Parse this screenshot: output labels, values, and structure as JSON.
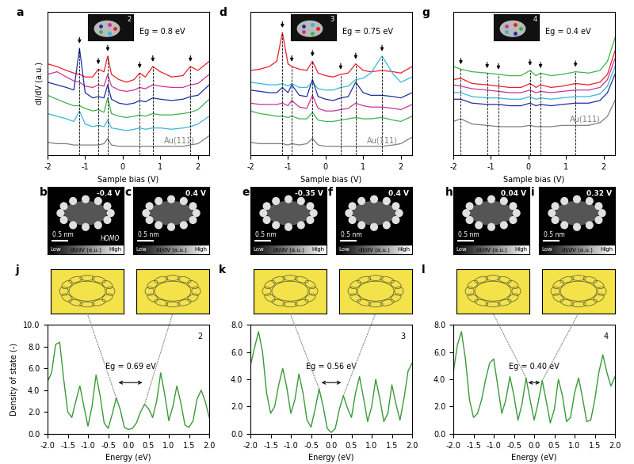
{
  "chart_data": [
    {
      "type": "line",
      "panel": "a",
      "molecule": "2",
      "gap_label": "Eg = 0.8 eV",
      "x_label": "Sample bias (V)",
      "y_label": "dI/dV (a.u.)",
      "xlim": [
        -2,
        2.3
      ],
      "ylim": [
        0,
        11
      ],
      "xticks": [
        -2,
        -1,
        0,
        1,
        2
      ],
      "tick_labels": "x",
      "peaks": [
        -1.15,
        -0.65,
        -0.4,
        0.45,
        0.8,
        1.8
      ],
      "x": [
        -2,
        -1.75,
        -1.5,
        -1.3,
        -1.15,
        -1.0,
        -0.8,
        -0.65,
        -0.5,
        -0.4,
        -0.3,
        -0.1,
        0.1,
        0.3,
        0.45,
        0.6,
        0.8,
        1.0,
        1.3,
        1.6,
        1.8,
        2.0,
        2.3
      ],
      "series": [
        {
          "color": "#e8202a",
          "values": [
            7.0,
            6.8,
            6.5,
            6.3,
            6.2,
            6.0,
            6.0,
            6.6,
            6.4,
            7.6,
            6.2,
            5.8,
            5.6,
            5.8,
            6.3,
            6.0,
            6.8,
            6.4,
            6.0,
            6.1,
            6.8,
            6.5,
            7.2
          ]
        },
        {
          "color": "#cc3399",
          "values": [
            6.2,
            6.4,
            6.0,
            5.7,
            5.6,
            5.3,
            5.2,
            5.4,
            5.3,
            6.2,
            5.3,
            5.0,
            4.9,
            5.0,
            5.2,
            5.1,
            5.4,
            5.3,
            5.2,
            5.2,
            5.4,
            5.5,
            6.2
          ]
        },
        {
          "color": "#1f2fa0",
          "values": [
            5.6,
            5.4,
            5.2,
            5.0,
            8.2,
            4.8,
            4.4,
            4.5,
            4.4,
            5.4,
            4.3,
            4.0,
            3.9,
            4.0,
            4.2,
            4.1,
            4.4,
            4.3,
            4.2,
            4.3,
            4.5,
            4.6,
            5.4
          ]
        },
        {
          "color": "#3cb44b",
          "values": [
            4.6,
            4.3,
            4.0,
            3.8,
            3.8,
            3.6,
            3.4,
            3.5,
            3.3,
            4.4,
            3.2,
            3.0,
            2.9,
            3.0,
            3.1,
            3.0,
            3.2,
            3.1,
            3.1,
            3.2,
            3.3,
            3.5,
            4.3
          ]
        },
        {
          "color": "#35b8d6",
          "values": [
            3.2,
            3.0,
            2.8,
            2.6,
            3.4,
            2.4,
            2.2,
            2.3,
            2.2,
            2.7,
            2.1,
            2.0,
            1.9,
            2.0,
            2.1,
            2.0,
            2.1,
            2.1,
            2.0,
            2.1,
            2.2,
            2.4,
            3.0
          ]
        },
        {
          "name": "Au(111)",
          "color": "#808080",
          "values": [
            1.0,
            0.9,
            0.9,
            0.8,
            0.8,
            0.8,
            0.8,
            0.8,
            0.9,
            1.3,
            0.8,
            0.7,
            0.7,
            0.7,
            0.7,
            0.7,
            0.7,
            0.7,
            0.7,
            0.7,
            0.8,
            0.9,
            1.5
          ]
        }
      ]
    },
    {
      "type": "line",
      "panel": "d",
      "molecule": "3",
      "gap_label": "Eg = 0.75 eV",
      "x_label": "Sample bias (V)",
      "xlim": [
        -2,
        2.3
      ],
      "ylim": [
        0,
        11
      ],
      "xticks": [
        -2,
        -1,
        0,
        1,
        2
      ],
      "tick_labels": "x",
      "peaks": [
        -1.15,
        -0.9,
        -0.35,
        0.4,
        0.8,
        1.5
      ],
      "x": [
        -2,
        -1.75,
        -1.5,
        -1.3,
        -1.15,
        -1.0,
        -0.9,
        -0.7,
        -0.5,
        -0.35,
        -0.2,
        0,
        0.2,
        0.4,
        0.6,
        0.8,
        1.0,
        1.2,
        1.5,
        1.8,
        2.0,
        2.3
      ],
      "series": [
        {
          "color": "#e8202a",
          "values": [
            6.5,
            6.6,
            6.8,
            7.2,
            9.4,
            7.0,
            6.8,
            6.6,
            6.5,
            7.2,
            6.3,
            6.1,
            6.0,
            6.2,
            6.3,
            7.0,
            6.5,
            6.4,
            6.5,
            6.4,
            6.3,
            6.8
          ]
        },
        {
          "color": "#35b8d6",
          "values": [
            5.6,
            5.5,
            5.4,
            5.4,
            5.5,
            5.3,
            5.5,
            5.2,
            5.2,
            5.6,
            5.1,
            5.0,
            5.0,
            5.2,
            5.3,
            5.8,
            5.9,
            6.3,
            7.6,
            6.2,
            5.6,
            6.0
          ]
        },
        {
          "color": "#1f2fa0",
          "values": [
            5.0,
            4.9,
            4.8,
            4.8,
            5.2,
            4.8,
            5.4,
            4.6,
            4.5,
            5.8,
            4.5,
            4.3,
            4.2,
            4.4,
            4.5,
            5.6,
            4.8,
            4.6,
            4.6,
            4.5,
            4.4,
            4.8
          ]
        },
        {
          "color": "#cc3399",
          "values": [
            4.0,
            3.9,
            3.9,
            3.9,
            4.0,
            3.8,
            4.2,
            3.7,
            3.6,
            4.6,
            3.6,
            3.4,
            3.4,
            3.5,
            3.6,
            4.0,
            3.8,
            3.7,
            3.7,
            3.6,
            3.5,
            3.9
          ]
        },
        {
          "color": "#3cb44b",
          "values": [
            3.4,
            3.2,
            3.1,
            3.0,
            3.0,
            2.9,
            3.0,
            2.8,
            2.8,
            3.3,
            2.7,
            2.6,
            2.6,
            2.7,
            2.8,
            2.9,
            2.8,
            2.8,
            2.9,
            2.7,
            2.6,
            3.0
          ]
        },
        {
          "name": "Au(111)",
          "color": "#808080",
          "values": [
            1.0,
            0.9,
            0.9,
            0.9,
            0.9,
            0.8,
            0.9,
            0.8,
            0.9,
            1.3,
            0.8,
            0.7,
            0.7,
            0.7,
            0.7,
            0.7,
            0.7,
            0.7,
            0.7,
            0.8,
            0.9,
            1.4
          ]
        }
      ]
    },
    {
      "type": "line",
      "panel": "g",
      "molecule": "4",
      "gap_label": "Eg = 0.4 eV",
      "x_label": "Sample bias (V)",
      "xlim": [
        -2,
        2.3
      ],
      "ylim": [
        0,
        11
      ],
      "xticks": [
        -2,
        -1,
        0,
        1,
        2
      ],
      "tick_labels": "x",
      "peaks": [
        -1.8,
        -1.1,
        -0.8,
        0.04,
        0.32,
        1.25
      ],
      "x": [
        -2,
        -1.8,
        -1.5,
        -1.1,
        -0.8,
        -0.5,
        -0.2,
        0.04,
        0.2,
        0.32,
        0.6,
        0.9,
        1.25,
        1.6,
        1.9,
        2.1,
        2.3
      ],
      "series": [
        {
          "color": "#3cb44b",
          "values": [
            6.8,
            6.6,
            6.4,
            6.3,
            6.2,
            6.1,
            6.1,
            6.5,
            6.1,
            6.3,
            6.1,
            6.2,
            6.4,
            6.3,
            6.5,
            7.2,
            9.0
          ]
        },
        {
          "color": "#e8202a",
          "values": [
            5.8,
            5.9,
            5.5,
            5.4,
            5.3,
            5.2,
            5.2,
            5.5,
            5.2,
            5.4,
            5.2,
            5.3,
            5.5,
            5.4,
            5.6,
            6.2,
            8.0
          ]
        },
        {
          "color": "#cc3399",
          "values": [
            5.4,
            5.3,
            5.1,
            5.0,
            4.9,
            4.8,
            4.8,
            5.0,
            4.8,
            4.9,
            4.8,
            4.9,
            5.0,
            5.0,
            5.2,
            5.8,
            7.4
          ]
        },
        {
          "color": "#35b8d6",
          "values": [
            4.8,
            4.8,
            4.5,
            4.4,
            4.4,
            4.3,
            4.3,
            4.5,
            4.3,
            4.4,
            4.3,
            4.4,
            4.5,
            4.5,
            4.7,
            5.3,
            6.8
          ]
        },
        {
          "color": "#1f2fa0",
          "values": [
            4.3,
            4.3,
            4.0,
            3.9,
            3.9,
            3.8,
            3.8,
            4.0,
            3.8,
            3.9,
            3.8,
            3.9,
            4.0,
            4.0,
            4.2,
            4.8,
            6.2
          ]
        },
        {
          "name": "Au(111)",
          "color": "#808080",
          "values": [
            2.6,
            2.8,
            2.4,
            2.3,
            2.2,
            2.2,
            2.2,
            2.3,
            2.2,
            2.2,
            2.2,
            2.3,
            2.3,
            2.3,
            2.5,
            3.0,
            4.2
          ]
        }
      ]
    },
    {
      "type": "line",
      "panel": "j",
      "molecule": "2",
      "gap_label": "Eg = 0.69 eV",
      "x_label": "Energy (eV)",
      "y_label": "Density of state (-)",
      "xlim": [
        -2.0,
        2.0
      ],
      "ylim": [
        0,
        10
      ],
      "xticks": [
        {
          "value": -2.0,
          "label": "-2.0"
        },
        {
          "value": -1.5,
          "label": "-1.5"
        },
        {
          "value": -1.0,
          "label": "-1.0"
        },
        {
          "value": -0.5,
          "label": "-0.5"
        },
        {
          "value": 0,
          "label": "0.0"
        },
        {
          "value": 0.5,
          "label": "0.5"
        },
        {
          "value": 1.0,
          "label": "1.0"
        },
        {
          "value": 1.5,
          "label": "1.5"
        },
        {
          "value": 2.0,
          "label": "2.0"
        }
      ],
      "yticks": [
        {
          "value": 0,
          "label": "0.0"
        },
        {
          "value": 2,
          "label": "2.0"
        },
        {
          "value": 4,
          "label": "4.0"
        },
        {
          "value": 6,
          "label": "6.0"
        },
        {
          "value": 8,
          "label": "8.0"
        },
        {
          "value": 10,
          "label": "10.0"
        }
      ],
      "homo_lumo": [
        -0.3,
        0.4
      ],
      "x": [
        -2.0,
        -1.9,
        -1.8,
        -1.7,
        -1.6,
        -1.5,
        -1.4,
        -1.3,
        -1.2,
        -1.1,
        -1.0,
        -0.9,
        -0.8,
        -0.7,
        -0.6,
        -0.5,
        -0.4,
        -0.3,
        -0.2,
        -0.1,
        0.0,
        0.1,
        0.2,
        0.3,
        0.4,
        0.5,
        0.6,
        0.7,
        0.8,
        0.9,
        1.0,
        1.1,
        1.2,
        1.3,
        1.4,
        1.5,
        1.6,
        1.7,
        1.8,
        1.9,
        2.0
      ],
      "series": [
        {
          "color": "#3a9a3a",
          "values": [
            4.8,
            5.6,
            8.2,
            8.4,
            5.0,
            2.0,
            1.5,
            3.0,
            4.4,
            2.5,
            0.7,
            2.5,
            5.4,
            3.5,
            1.0,
            0.5,
            1.8,
            3.3,
            2.2,
            0.6,
            0.4,
            0.5,
            1.0,
            2.0,
            2.7,
            2.3,
            1.5,
            3.0,
            5.6,
            3.6,
            1.2,
            2.5,
            4.4,
            2.8,
            0.8,
            0.6,
            1.2,
            3.2,
            4.0,
            3.0,
            1.5
          ]
        }
      ]
    },
    {
      "type": "line",
      "panel": "k",
      "molecule": "3",
      "gap_label": "Eg = 0.56 eV",
      "x_label": "Energy (eV)",
      "xlim": [
        -2.0,
        2.0
      ],
      "ylim": [
        0,
        8
      ],
      "xticks": [
        {
          "value": -2.0,
          "label": "-2.0"
        },
        {
          "value": -1.5,
          "label": "-1.5"
        },
        {
          "value": -1.0,
          "label": "-1.0"
        },
        {
          "value": -0.5,
          "label": "-0.5"
        },
        {
          "value": 0,
          "label": "0.0"
        },
        {
          "value": 0.5,
          "label": "0.5"
        },
        {
          "value": 1.0,
          "label": "1.0"
        },
        {
          "value": 1.5,
          "label": "1.5"
        },
        {
          "value": 2.0,
          "label": "2.0"
        }
      ],
      "yticks": [
        {
          "value": 0,
          "label": "0.0"
        },
        {
          "value": 2,
          "label": "2.0"
        },
        {
          "value": 4,
          "label": "4.0"
        },
        {
          "value": 6,
          "label": "6.0"
        },
        {
          "value": 8,
          "label": "8.0"
        }
      ],
      "homo_lumo": [
        -0.3,
        0.3
      ],
      "x": [
        -2.0,
        -1.9,
        -1.8,
        -1.7,
        -1.6,
        -1.5,
        -1.4,
        -1.3,
        -1.2,
        -1.1,
        -1.0,
        -0.9,
        -0.8,
        -0.7,
        -0.6,
        -0.5,
        -0.4,
        -0.3,
        -0.2,
        -0.1,
        0.0,
        0.1,
        0.2,
        0.3,
        0.4,
        0.5,
        0.6,
        0.7,
        0.8,
        0.9,
        1.0,
        1.1,
        1.2,
        1.3,
        1.4,
        1.5,
        1.6,
        1.7,
        1.8,
        1.9,
        2.0
      ],
      "series": [
        {
          "color": "#3a9a3a",
          "values": [
            5.0,
            6.3,
            7.5,
            6.0,
            3.0,
            1.5,
            2.0,
            3.6,
            4.8,
            3.4,
            1.5,
            2.5,
            4.4,
            3.0,
            1.0,
            0.5,
            1.8,
            3.3,
            2.0,
            0.4,
            0.1,
            0.4,
            1.8,
            2.8,
            1.9,
            1.2,
            3.0,
            4.2,
            2.6,
            0.9,
            2.0,
            4.0,
            2.6,
            0.9,
            1.5,
            3.6,
            2.2,
            1.0,
            2.6,
            4.6,
            5.2
          ]
        }
      ]
    },
    {
      "type": "line",
      "panel": "l",
      "molecule": "4",
      "gap_label": "Eg = 0.40 eV",
      "x_label": "Energy (eV)",
      "xlim": [
        -2.0,
        2.0
      ],
      "ylim": [
        0,
        8
      ],
      "xticks": [
        {
          "value": -2.0,
          "label": "-2.0"
        },
        {
          "value": -1.5,
          "label": "-1.5"
        },
        {
          "value": -1.0,
          "label": "-1.0"
        },
        {
          "value": -0.5,
          "label": "-0.5"
        },
        {
          "value": 0,
          "label": "0.0"
        },
        {
          "value": 0.5,
          "label": "0.5"
        },
        {
          "value": 1.0,
          "label": "1.0"
        },
        {
          "value": 1.5,
          "label": "1.5"
        },
        {
          "value": 2.0,
          "label": "2.0"
        }
      ],
      "yticks": [
        {
          "value": 0,
          "label": "0.0"
        },
        {
          "value": 2,
          "label": "2.0"
        },
        {
          "value": 4,
          "label": "4.0"
        },
        {
          "value": 6,
          "label": "6.0"
        },
        {
          "value": 8,
          "label": "8.0"
        }
      ],
      "homo_lumo": [
        -0.2,
        0.2
      ],
      "x": [
        -2.0,
        -1.9,
        -1.8,
        -1.7,
        -1.6,
        -1.5,
        -1.4,
        -1.3,
        -1.2,
        -1.1,
        -1.0,
        -0.9,
        -0.8,
        -0.7,
        -0.6,
        -0.5,
        -0.4,
        -0.3,
        -0.2,
        -0.1,
        0.0,
        0.1,
        0.2,
        0.3,
        0.4,
        0.5,
        0.6,
        0.7,
        0.8,
        0.9,
        1.0,
        1.1,
        1.2,
        1.3,
        1.4,
        1.5,
        1.6,
        1.7,
        1.8,
        1.9,
        2.0
      ],
      "series": [
        {
          "color": "#3a9a3a",
          "values": [
            4.5,
            6.5,
            7.5,
            5.5,
            2.5,
            1.2,
            1.5,
            2.5,
            4.0,
            5.2,
            5.5,
            3.5,
            1.5,
            2.5,
            4.2,
            2.8,
            1.0,
            2.2,
            4.1,
            2.5,
            1.0,
            2.3,
            3.9,
            2.4,
            0.8,
            1.8,
            4.0,
            2.8,
            0.9,
            1.2,
            3.0,
            4.1,
            2.6,
            0.9,
            1.0,
            2.5,
            4.5,
            5.8,
            4.5,
            3.5,
            4.2
          ]
        }
      ]
    }
  ],
  "image_panels": [
    {
      "panel": "b",
      "bias": "-0.4 V",
      "scale_bar": "0.5 nm",
      "orbital": "HOMO",
      "colorbar_low": "Low",
      "colorbar_label": "dI/dV (a.u.)",
      "colorbar_high": "High"
    },
    {
      "panel": "c",
      "bias": "0.4 V",
      "scale_bar": "0.5 nm",
      "colorbar_low": "Low",
      "colorbar_label": "dI/dV (a.u.)",
      "colorbar_high": "High"
    },
    {
      "panel": "e",
      "bias": "-0.35 V",
      "scale_bar": "0.5 nm",
      "colorbar_low": "Low",
      "colorbar_label": "dI/dV (a.u.)",
      "colorbar_high": "High"
    },
    {
      "panel": "f",
      "bias": "0.4 V",
      "scale_bar": "0.5 nm",
      "colorbar_low": "Low",
      "colorbar_label": "dI/dV (a.u.)",
      "colorbar_high": "High"
    },
    {
      "panel": "h",
      "bias": "0.04 V",
      "scale_bar": "0.5 nm",
      "colorbar_low": "Low",
      "colorbar_label": "dI/dV (a.u.)",
      "colorbar_high": "High"
    },
    {
      "panel": "i",
      "bias": "0.32 V",
      "scale_bar": "0.5 nm",
      "colorbar_low": "Low",
      "colorbar_label": "dI/dV (a.u.)",
      "colorbar_high": "High"
    }
  ]
}
